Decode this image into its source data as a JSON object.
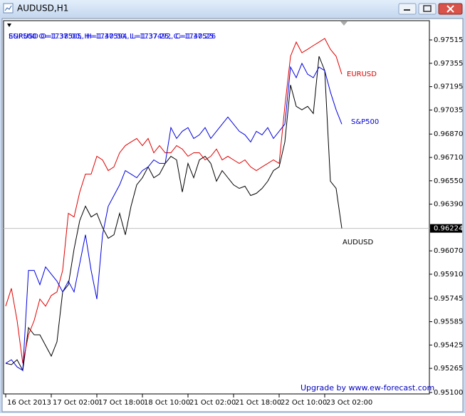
{
  "window_title": "AUDUSD,H1",
  "chart_data": {
    "type": "line",
    "header_texts": [
      "EURUSD O=1.37505, H=1.37594, L=1.37492, C=1.37526",
      "S&P500 O=1738.00, H=1740.00, L=1737.25, C=1740.25"
    ],
    "watermark": "Upgrade by www.ew-forecast.com",
    "x": [
      0,
      2,
      4,
      6,
      8,
      10,
      12,
      14,
      16,
      18,
      20,
      22,
      24,
      26,
      28,
      30,
      32,
      34,
      36,
      38,
      40,
      42,
      44,
      46,
      48,
      50,
      52,
      54,
      56,
      58,
      60,
      62,
      64,
      66,
      68,
      70,
      72,
      74,
      76,
      78,
      80,
      82,
      84,
      86,
      88,
      90,
      92,
      94,
      96,
      98,
      100,
      102,
      104,
      106,
      108,
      110,
      112,
      114,
      116,
      118
    ],
    "xlim": [
      -0.75,
      148.75
    ],
    "ylim": [
      0.9509,
      0.97647
    ],
    "xticks": [
      {
        "value": 0,
        "label": "16 Oct 2013"
      },
      {
        "value": 16,
        "label": "17 Oct 02:00"
      },
      {
        "value": 32,
        "label": "17 Oct 18:00"
      },
      {
        "value": 48,
        "label": "18 Oct 10:00"
      },
      {
        "value": 64,
        "label": "21 Oct 02:00"
      },
      {
        "value": 80,
        "label": "21 Oct 18:00"
      },
      {
        "value": 96,
        "label": "22 Oct 10:00"
      },
      {
        "value": 112,
        "label": "23 Oct 02:00"
      }
    ],
    "yticks": [
      0.97515,
      0.97355,
      0.97195,
      0.97035,
      {
        "value": 0.9687,
        "label": "0.96870"
      },
      {
        "value": 0.9671,
        "label": "0.96710"
      },
      {
        "value": 0.9655,
        "label": "0.96550"
      },
      {
        "value": 0.9639,
        "label": "0.96390"
      },
      {
        "value": 0.9607,
        "label": "0.96070"
      },
      {
        "value": 0.9591,
        "label": "0.95910"
      },
      0.95745,
      0.95585,
      0.95425,
      0.95265,
      {
        "value": 0.951,
        "label": "0.95100"
      }
    ],
    "last_price": 0.96224,
    "series": [
      {
        "name": "AUDUSD",
        "color": "#000000",
        "values": [
          0.953,
          0.9529,
          0.95324,
          0.95251,
          0.95544,
          0.95495,
          0.95495,
          0.95422,
          0.95349,
          0.95447,
          0.95789,
          0.95838,
          0.96082,
          0.96278,
          0.96376,
          0.96302,
          0.96327,
          0.96229,
          0.96156,
          0.9618,
          0.96327,
          0.9618,
          0.96376,
          0.96522,
          0.96571,
          0.96645,
          0.96571,
          0.96596,
          0.96669,
          0.96718,
          0.96693,
          0.96473,
          0.96669,
          0.96571,
          0.96693,
          0.96718,
          0.96669,
          0.96547,
          0.9662,
          0.96571,
          0.96522,
          0.96498,
          0.96513,
          0.96449,
          0.96464,
          0.96498,
          0.96547,
          0.9662,
          0.96645,
          0.96816,
          0.97207,
          0.9706,
          0.97036,
          0.9706,
          0.97011,
          0.97403,
          0.97305,
          0.96547,
          0.96498,
          0.96224
        ]
      },
      {
        "name": "EURUSD",
        "color": "#e00000",
        "values": [
          0.95691,
          0.95813,
          0.95593,
          0.953,
          0.95495,
          0.95593,
          0.9574,
          0.95691,
          0.95764,
          0.95789,
          0.95936,
          0.96327,
          0.96302,
          0.96473,
          0.96596,
          0.96596,
          0.96718,
          0.96693,
          0.9662,
          0.96645,
          0.96742,
          0.96791,
          0.96816,
          0.9684,
          0.96791,
          0.9684,
          0.96742,
          0.96791,
          0.96742,
          0.96742,
          0.96791,
          0.96767,
          0.96718,
          0.96742,
          0.96742,
          0.96693,
          0.96718,
          0.96767,
          0.96693,
          0.96718,
          0.96693,
          0.96669,
          0.96693,
          0.96645,
          0.9662,
          0.96645,
          0.96669,
          0.96693,
          0.96669,
          0.9706,
          0.97403,
          0.975,
          0.97427,
          0.97451,
          0.97476,
          0.975,
          0.97525,
          0.97451,
          0.97403,
          0.9728
        ]
      },
      {
        "name": "S&P500",
        "color": "#0000e0",
        "values": [
          0.953,
          0.95324,
          0.95275,
          0.95251,
          0.95936,
          0.95936,
          0.95838,
          0.9596,
          0.95911,
          0.95862,
          0.95789,
          0.95862,
          0.95789,
          0.95984,
          0.9618,
          0.95936,
          0.9574,
          0.9618,
          0.96376,
          0.96449,
          0.96522,
          0.9662,
          0.96596,
          0.96571,
          0.9662,
          0.96645,
          0.96693,
          0.96669,
          0.96669,
          0.96914,
          0.9684,
          0.96889,
          0.96914,
          0.9684,
          0.96865,
          0.96914,
          0.9684,
          0.96889,
          0.96938,
          0.96987,
          0.96938,
          0.96889,
          0.96865,
          0.96816,
          0.96889,
          0.96865,
          0.96914,
          0.9684,
          0.96889,
          0.96938,
          0.97329,
          0.97256,
          0.97354,
          0.9728,
          0.97256,
          0.97329,
          0.97305,
          0.97158,
          0.97036,
          0.96938
        ]
      }
    ]
  }
}
